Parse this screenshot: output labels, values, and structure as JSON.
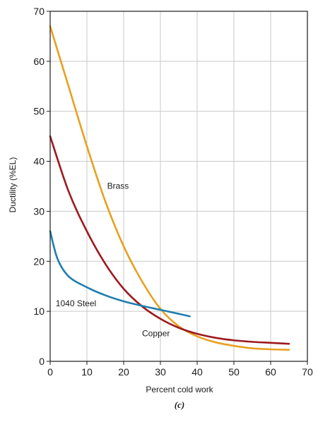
{
  "chart_data": {
    "type": "line",
    "xlabel": "Percent cold work",
    "ylabel": "Ductility (%EL)",
    "panel_label": "(c)",
    "xlim": [
      0,
      70
    ],
    "ylim": [
      0,
      70
    ],
    "xticks": [
      0,
      10,
      20,
      30,
      40,
      50,
      60,
      70
    ],
    "yticks": [
      0,
      10,
      20,
      30,
      40,
      50,
      60,
      70
    ],
    "grid": true,
    "legend": "none",
    "colors": {
      "grid": "#c9c9c9",
      "axis": "#1a1a1a",
      "brass": "#e8a020",
      "copper": "#9c1a1e",
      "steel": "#1f7fae"
    },
    "series": [
      {
        "name": "Brass",
        "color_key": "brass",
        "x": [
          0,
          5,
          10,
          15,
          20,
          25,
          30,
          35,
          40,
          45,
          50,
          55,
          60,
          65
        ],
        "y": [
          67,
          55,
          43,
          32,
          23,
          16,
          10.5,
          7,
          5,
          3.8,
          3.1,
          2.6,
          2.4,
          2.3
        ]
      },
      {
        "name": "Copper",
        "color_key": "copper",
        "x": [
          0,
          5,
          10,
          15,
          20,
          25,
          30,
          35,
          40,
          45,
          50,
          55,
          60,
          65
        ],
        "y": [
          45,
          34,
          26,
          19.5,
          14.5,
          11,
          8.5,
          6.7,
          5.5,
          4.7,
          4.2,
          3.9,
          3.7,
          3.5
        ]
      },
      {
        "name": "1040 Steel",
        "color_key": "steel",
        "x": [
          0,
          2,
          5,
          10,
          15,
          20,
          25,
          30,
          35,
          38
        ],
        "y": [
          26,
          20.5,
          17,
          14.8,
          13.2,
          12,
          11.1,
          10.3,
          9.5,
          9
        ]
      }
    ],
    "annotations": [
      {
        "text": "Brass",
        "x": 15.5,
        "y": 34.5,
        "series": "Brass"
      },
      {
        "text": "Copper",
        "x": 25,
        "y": 5,
        "series": "Copper"
      },
      {
        "text": "1040 Steel",
        "x": 1.5,
        "y": 11,
        "series": "1040 Steel"
      }
    ]
  }
}
